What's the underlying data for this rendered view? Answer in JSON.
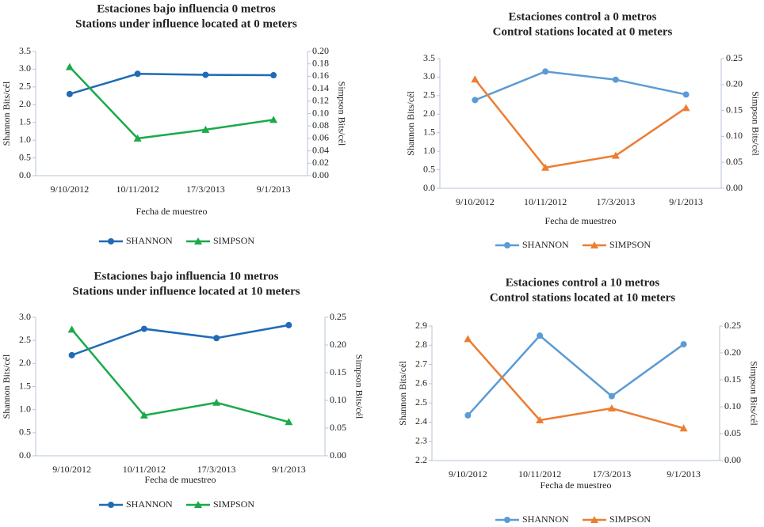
{
  "chart_data": [
    {
      "type": "line",
      "title": "Estaciones bajo influencia 0 metros",
      "subtitle": "Stations under influence located at 0 meters",
      "xlabel": "Fecha de muestreo",
      "ylabel": "Shannon Bits/cél",
      "y2label": "Simpson Bits/cél",
      "categories": [
        "9/10/2012",
        "10/11/2012",
        "17/3/2013",
        "9/1/2013"
      ],
      "series": [
        {
          "name": "SHANNON",
          "color": "#1f6bb5",
          "marker": "circle",
          "values": [
            2.3,
            2.87,
            2.84,
            2.83
          ]
        },
        {
          "name": "SIMPSON",
          "color": "#1aaa4a",
          "marker": "triangle",
          "axis": "y2",
          "values": [
            0.175,
            0.06,
            0.074,
            0.09
          ]
        }
      ],
      "ylim": [
        0,
        3.5
      ],
      "yticks": [
        {
          "value": 0,
          "label": "0.0"
        },
        0.5,
        {
          "value": 1,
          "label": "1.0"
        },
        1.5,
        {
          "value": 2,
          "label": "2.0"
        },
        2.5,
        {
          "value": 3,
          "label": "3.0"
        },
        3.5
      ],
      "y2lim": [
        0,
        0.2
      ],
      "y2ticks": [
        {
          "value": 0,
          "label": "0.00"
        },
        0.02,
        0.04,
        0.06,
        0.08,
        {
          "value": 0.1,
          "label": "0.10"
        },
        0.12,
        0.14,
        0.16,
        0.18,
        {
          "value": 0.2,
          "label": "0.20"
        }
      ],
      "legend": "bottom"
    },
    {
      "type": "line",
      "title": "Estaciones control a 0 metros",
      "subtitle": "Control stations located at 0 meters",
      "xlabel": "Fecha de muestreo",
      "ylabel": "Shannon Bits/cél",
      "y2label": "Simpson Bits/cél",
      "categories": [
        "9/10/2012",
        "10/11/2012",
        "17/3/2013",
        "9/1/2013"
      ],
      "series": [
        {
          "name": "SHANNON",
          "color": "#5b9bd5",
          "marker": "circle",
          "values": [
            2.38,
            3.15,
            2.93,
            2.53
          ]
        },
        {
          "name": "SIMPSON",
          "color": "#ed7d31",
          "marker": "triangle",
          "axis": "y2",
          "values": [
            0.21,
            0.04,
            0.063,
            0.155
          ]
        }
      ],
      "ylim": [
        0,
        3.5
      ],
      "yticks": [
        {
          "value": 0,
          "label": "0.0"
        },
        0.5,
        {
          "value": 1,
          "label": "1.0"
        },
        1.5,
        {
          "value": 2,
          "label": "2.0"
        },
        2.5,
        {
          "value": 3,
          "label": "3.0"
        },
        3.5
      ],
      "y2lim": [
        0,
        0.25
      ],
      "y2ticks": [
        {
          "value": 0,
          "label": "0.00"
        },
        0.05,
        {
          "value": 0.1,
          "label": "0.10"
        },
        0.15,
        {
          "value": 0.2,
          "label": "0.20"
        },
        0.25
      ],
      "legend": "bottom"
    },
    {
      "type": "line",
      "title": "Estaciones bajo influencia 10 metros",
      "subtitle": "Stations under influence located at 10 meters",
      "xlabel": "Fecha de muestreo",
      "ylabel": "Shannon Bits/cél",
      "y2label": "Simpson Bits/cél",
      "categories": [
        "9/10/2012",
        "10/11/2012",
        "17/3/2013",
        "9/1/2013"
      ],
      "series": [
        {
          "name": "SHANNON",
          "color": "#1f6bb5",
          "marker": "circle",
          "values": [
            2.18,
            2.75,
            2.55,
            2.83
          ]
        },
        {
          "name": "SIMPSON",
          "color": "#1aaa4a",
          "marker": "triangle",
          "axis": "y2",
          "values": [
            0.228,
            0.073,
            0.096,
            0.061
          ]
        }
      ],
      "ylim": [
        0,
        3
      ],
      "yticks": [
        {
          "value": 0,
          "label": "0.0"
        },
        0.5,
        {
          "value": 1,
          "label": "1.0"
        },
        1.5,
        {
          "value": 2,
          "label": "2.0"
        },
        2.5,
        {
          "value": 3,
          "label": "3.0"
        }
      ],
      "y2lim": [
        0,
        0.25
      ],
      "y2ticks": [
        {
          "value": 0,
          "label": "0.00"
        },
        0.05,
        {
          "value": 0.1,
          "label": "0.10"
        },
        0.15,
        {
          "value": 0.2,
          "label": "0.20"
        },
        0.25
      ],
      "legend": "bottom"
    },
    {
      "type": "line",
      "title": "Estaciones control a 10 metros",
      "subtitle": "Control stations located at 10 meters",
      "xlabel": "Fecha de muestreo",
      "ylabel": "Shannon Bits/cél",
      "y2label": "Simpson Bits/cél",
      "categories": [
        "9/10/2012",
        "10/11/2012",
        "17/3/2013",
        "9/1/2013"
      ],
      "series": [
        {
          "name": "SHANNON",
          "color": "#5b9bd5",
          "marker": "circle",
          "values": [
            2.435,
            2.85,
            2.535,
            2.805
          ]
        },
        {
          "name": "SIMPSON",
          "color": "#ed7d31",
          "marker": "triangle",
          "axis": "y2",
          "values": [
            0.226,
            0.075,
            0.097,
            0.06
          ]
        }
      ],
      "ylim": [
        2.2,
        2.9
      ],
      "yticks": [
        2.2,
        2.3,
        2.4,
        2.5,
        2.6,
        2.7,
        2.8,
        2.9
      ],
      "y2lim": [
        0,
        0.25
      ],
      "y2ticks": [
        {
          "value": 0,
          "label": "0.00"
        },
        0.05,
        {
          "value": 0.1,
          "label": "0.10"
        },
        0.15,
        {
          "value": 0.2,
          "label": "0.20"
        },
        0.25
      ],
      "legend": "bottom"
    }
  ]
}
